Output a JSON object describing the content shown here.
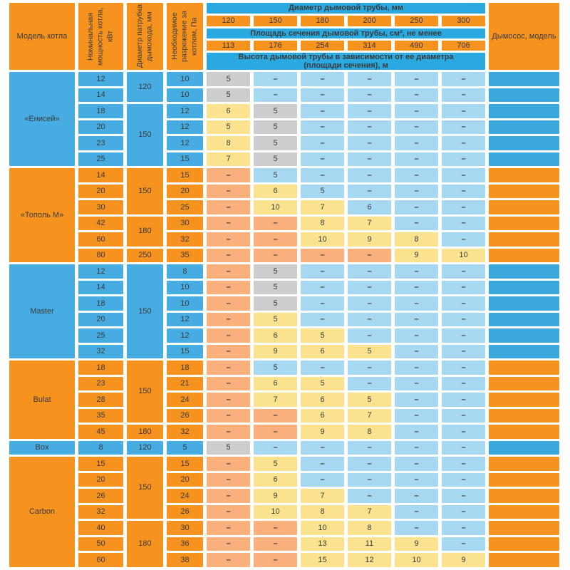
{
  "chart_data": {
    "type": "table",
    "colors": {
      "section_blue": "#47ace1",
      "section_orange": "#f6921e",
      "band_blue": "#2aa9e0",
      "fan_blue": "#3ba8dd",
      "value_gray": "#cbcdce",
      "value_yellow": "#fbe28e",
      "value_blue": "#a7d8f1",
      "value_salmon": "#f9b07c"
    },
    "header": {
      "model": "Модель котла",
      "power": "Номинальная мощность котла, кВт",
      "pipe": "Диаметр патрубка дымохода, мм",
      "draft": "Необходимое разрежение за котлом, Па",
      "diameter_title": "Диаметр дымовой трубы, мм",
      "diameters": [
        "120",
        "150",
        "180",
        "200",
        "250",
        "300"
      ],
      "area_title": "Площадь сечения дымовой трубы, см², не менее",
      "areas": [
        "113",
        "176",
        "254",
        "314",
        "490",
        "706"
      ],
      "height_title": "Высота дымовой трубы в зависимости от ее диаметра (площади сечения), м",
      "fan": "Дымосос, модель"
    },
    "sections": [
      {
        "model": "«Енисей»",
        "theme": "blue",
        "pipes": [
          {
            "value": "120",
            "span": 2
          },
          {
            "value": "150",
            "span": 4
          }
        ],
        "rows": [
          {
            "power": "12",
            "draft": "10",
            "cells": [
              [
                "5",
                "g"
              ],
              [
                "–",
                "b"
              ],
              [
                "–",
                "b"
              ],
              [
                "–",
                "b"
              ],
              [
                "–",
                "b"
              ],
              [
                "–",
                "b"
              ]
            ]
          },
          {
            "power": "14",
            "draft": "10",
            "cells": [
              [
                "5",
                "g"
              ],
              [
                "–",
                "b"
              ],
              [
                "–",
                "b"
              ],
              [
                "–",
                "b"
              ],
              [
                "–",
                "b"
              ],
              [
                "–",
                "b"
              ]
            ]
          },
          {
            "power": "18",
            "draft": "12",
            "cells": [
              [
                "6",
                "y"
              ],
              [
                "5",
                "g"
              ],
              [
                "–",
                "b"
              ],
              [
                "–",
                "b"
              ],
              [
                "–",
                "b"
              ],
              [
                "–",
                "b"
              ]
            ]
          },
          {
            "power": "20",
            "draft": "12",
            "cells": [
              [
                "5",
                "y"
              ],
              [
                "5",
                "g"
              ],
              [
                "–",
                "b"
              ],
              [
                "–",
                "b"
              ],
              [
                "–",
                "b"
              ],
              [
                "–",
                "b"
              ]
            ]
          },
          {
            "power": "23",
            "draft": "12",
            "cells": [
              [
                "8",
                "y"
              ],
              [
                "5",
                "g"
              ],
              [
                "–",
                "b"
              ],
              [
                "–",
                "b"
              ],
              [
                "–",
                "b"
              ],
              [
                "–",
                "b"
              ]
            ]
          },
          {
            "power": "25",
            "draft": "15",
            "cells": [
              [
                "7",
                "y"
              ],
              [
                "5",
                "g"
              ],
              [
                "–",
                "b"
              ],
              [
                "–",
                "b"
              ],
              [
                "–",
                "b"
              ],
              [
                "–",
                "b"
              ]
            ]
          }
        ]
      },
      {
        "model": "«Тополь М»",
        "theme": "orange",
        "pipes": [
          {
            "value": "150",
            "span": 3
          },
          {
            "value": "180",
            "span": 2
          },
          {
            "value": "250",
            "span": 1
          }
        ],
        "rows": [
          {
            "power": "14",
            "draft": "15",
            "cells": [
              [
                "–",
                "s"
              ],
              [
                "5",
                "b"
              ],
              [
                "–",
                "b"
              ],
              [
                "–",
                "b"
              ],
              [
                "–",
                "b"
              ],
              [
                "–",
                "b"
              ]
            ]
          },
          {
            "power": "20",
            "draft": "20",
            "cells": [
              [
                "–",
                "s"
              ],
              [
                "6",
                "y"
              ],
              [
                "5",
                "b"
              ],
              [
                "–",
                "b"
              ],
              [
                "–",
                "b"
              ],
              [
                "–",
                "b"
              ]
            ]
          },
          {
            "power": "30",
            "draft": "25",
            "cells": [
              [
                "–",
                "s"
              ],
              [
                "10",
                "y"
              ],
              [
                "7",
                "y"
              ],
              [
                "6",
                "b"
              ],
              [
                "–",
                "b"
              ],
              [
                "–",
                "b"
              ]
            ]
          },
          {
            "power": "42",
            "draft": "30",
            "cells": [
              [
                "–",
                "s"
              ],
              [
                "–",
                "s"
              ],
              [
                "8",
                "y"
              ],
              [
                "7",
                "y"
              ],
              [
                "–",
                "b"
              ],
              [
                "–",
                "b"
              ]
            ]
          },
          {
            "power": "60",
            "draft": "32",
            "cells": [
              [
                "–",
                "s"
              ],
              [
                "–",
                "s"
              ],
              [
                "10",
                "y"
              ],
              [
                "9",
                "y"
              ],
              [
                "8",
                "y"
              ],
              [
                "–",
                "b"
              ]
            ]
          },
          {
            "power": "80",
            "draft": "35",
            "cells": [
              [
                "–",
                "s"
              ],
              [
                "–",
                "s"
              ],
              [
                "–",
                "s"
              ],
              [
                "–",
                "s"
              ],
              [
                "9",
                "y"
              ],
              [
                "10",
                "y"
              ]
            ]
          }
        ]
      },
      {
        "model": "Master",
        "theme": "blue",
        "pipes": [
          {
            "value": "150",
            "span": 6
          }
        ],
        "rows": [
          {
            "power": "12",
            "draft": "8",
            "cells": [
              [
                "–",
                "s"
              ],
              [
                "5",
                "g"
              ],
              [
                "–",
                "b"
              ],
              [
                "–",
                "b"
              ],
              [
                "–",
                "b"
              ],
              [
                "–",
                "b"
              ]
            ]
          },
          {
            "power": "14",
            "draft": "10",
            "cells": [
              [
                "–",
                "s"
              ],
              [
                "5",
                "g"
              ],
              [
                "–",
                "b"
              ],
              [
                "–",
                "b"
              ],
              [
                "–",
                "b"
              ],
              [
                "–",
                "b"
              ]
            ]
          },
          {
            "power": "18",
            "draft": "10",
            "cells": [
              [
                "–",
                "s"
              ],
              [
                "5",
                "g"
              ],
              [
                "–",
                "b"
              ],
              [
                "–",
                "b"
              ],
              [
                "–",
                "b"
              ],
              [
                "–",
                "b"
              ]
            ]
          },
          {
            "power": "20",
            "draft": "12",
            "cells": [
              [
                "–",
                "s"
              ],
              [
                "5",
                "y"
              ],
              [
                "–",
                "b"
              ],
              [
                "–",
                "b"
              ],
              [
                "–",
                "b"
              ],
              [
                "–",
                "b"
              ]
            ]
          },
          {
            "power": "25",
            "draft": "12",
            "cells": [
              [
                "–",
                "s"
              ],
              [
                "6",
                "y"
              ],
              [
                "5",
                "y"
              ],
              [
                "–",
                "b"
              ],
              [
                "–",
                "b"
              ],
              [
                "–",
                "b"
              ]
            ]
          },
          {
            "power": "32",
            "draft": "15",
            "cells": [
              [
                "–",
                "s"
              ],
              [
                "9",
                "y"
              ],
              [
                "6",
                "y"
              ],
              [
                "5",
                "y"
              ],
              [
                "–",
                "b"
              ],
              [
                "–",
                "b"
              ]
            ]
          }
        ]
      },
      {
        "model": "Bulat",
        "theme": "orange",
        "pipes": [
          {
            "value": "150",
            "span": 4
          },
          {
            "value": "180",
            "span": 1
          }
        ],
        "rows": [
          {
            "power": "18",
            "draft": "18",
            "cells": [
              [
                "–",
                "s"
              ],
              [
                "5",
                "b"
              ],
              [
                "–",
                "b"
              ],
              [
                "–",
                "b"
              ],
              [
                "–",
                "b"
              ],
              [
                "–",
                "b"
              ]
            ]
          },
          {
            "power": "23",
            "draft": "21",
            "cells": [
              [
                "–",
                "s"
              ],
              [
                "6",
                "y"
              ],
              [
                "5",
                "y"
              ],
              [
                "–",
                "b"
              ],
              [
                "–",
                "b"
              ],
              [
                "–",
                "b"
              ]
            ]
          },
          {
            "power": "28",
            "draft": "24",
            "cells": [
              [
                "–",
                "s"
              ],
              [
                "7",
                "y"
              ],
              [
                "6",
                "y"
              ],
              [
                "5",
                "y"
              ],
              [
                "–",
                "b"
              ],
              [
                "–",
                "b"
              ]
            ]
          },
          {
            "power": "35",
            "draft": "26",
            "cells": [
              [
                "–",
                "s"
              ],
              [
                "–",
                "s"
              ],
              [
                "6",
                "y"
              ],
              [
                "7",
                "y"
              ],
              [
                "–",
                "b"
              ],
              [
                "–",
                "b"
              ]
            ]
          },
          {
            "power": "45",
            "draft": "32",
            "cells": [
              [
                "–",
                "s"
              ],
              [
                "–",
                "s"
              ],
              [
                "9",
                "y"
              ],
              [
                "8",
                "y"
              ],
              [
                "–",
                "b"
              ],
              [
                "–",
                "b"
              ]
            ]
          }
        ]
      },
      {
        "model": "Box",
        "theme": "blue",
        "pipes": [
          {
            "value": "120",
            "span": 1
          }
        ],
        "rows": [
          {
            "power": "8",
            "draft": "5",
            "cells": [
              [
                "5",
                "g"
              ],
              [
                "–",
                "b"
              ],
              [
                "–",
                "b"
              ],
              [
                "–",
                "b"
              ],
              [
                "–",
                "b"
              ],
              [
                "–",
                "b"
              ]
            ]
          }
        ]
      },
      {
        "model": "Carbon",
        "theme": "orange",
        "pipes": [
          {
            "value": "150",
            "span": 4
          },
          {
            "value": "180",
            "span": 3
          }
        ],
        "rows": [
          {
            "power": "15",
            "draft": "15",
            "cells": [
              [
                "–",
                "s"
              ],
              [
                "5",
                "y"
              ],
              [
                "–",
                "b"
              ],
              [
                "–",
                "b"
              ],
              [
                "–",
                "b"
              ],
              [
                "–",
                "b"
              ]
            ]
          },
          {
            "power": "20",
            "draft": "20",
            "cells": [
              [
                "–",
                "s"
              ],
              [
                "6",
                "y"
              ],
              [
                "–",
                "b"
              ],
              [
                "–",
                "b"
              ],
              [
                "–",
                "b"
              ],
              [
                "–",
                "b"
              ]
            ]
          },
          {
            "power": "26",
            "draft": "24",
            "cells": [
              [
                "–",
                "s"
              ],
              [
                "9",
                "y"
              ],
              [
                "7",
                "y"
              ],
              [
                "–",
                "b"
              ],
              [
                "–",
                "b"
              ],
              [
                "–",
                "b"
              ]
            ]
          },
          {
            "power": "32",
            "draft": "26",
            "cells": [
              [
                "–",
                "s"
              ],
              [
                "10",
                "y"
              ],
              [
                "8",
                "y"
              ],
              [
                "7",
                "y"
              ],
              [
                "–",
                "b"
              ],
              [
                "–",
                "b"
              ]
            ]
          },
          {
            "power": "40",
            "draft": "30",
            "cells": [
              [
                "–",
                "s"
              ],
              [
                "–",
                "s"
              ],
              [
                "10",
                "y"
              ],
              [
                "8",
                "y"
              ],
              [
                "–",
                "b"
              ],
              [
                "–",
                "b"
              ]
            ]
          },
          {
            "power": "50",
            "draft": "36",
            "cells": [
              [
                "–",
                "s"
              ],
              [
                "–",
                "s"
              ],
              [
                "13",
                "y"
              ],
              [
                "11",
                "y"
              ],
              [
                "9",
                "y"
              ],
              [
                "–",
                "b"
              ]
            ]
          },
          {
            "power": "60",
            "draft": "38",
            "cells": [
              [
                "–",
                "s"
              ],
              [
                "–",
                "s"
              ],
              [
                "15",
                "y"
              ],
              [
                "12",
                "y"
              ],
              [
                "10",
                "y"
              ],
              [
                "9",
                "y"
              ]
            ]
          }
        ]
      }
    ]
  }
}
